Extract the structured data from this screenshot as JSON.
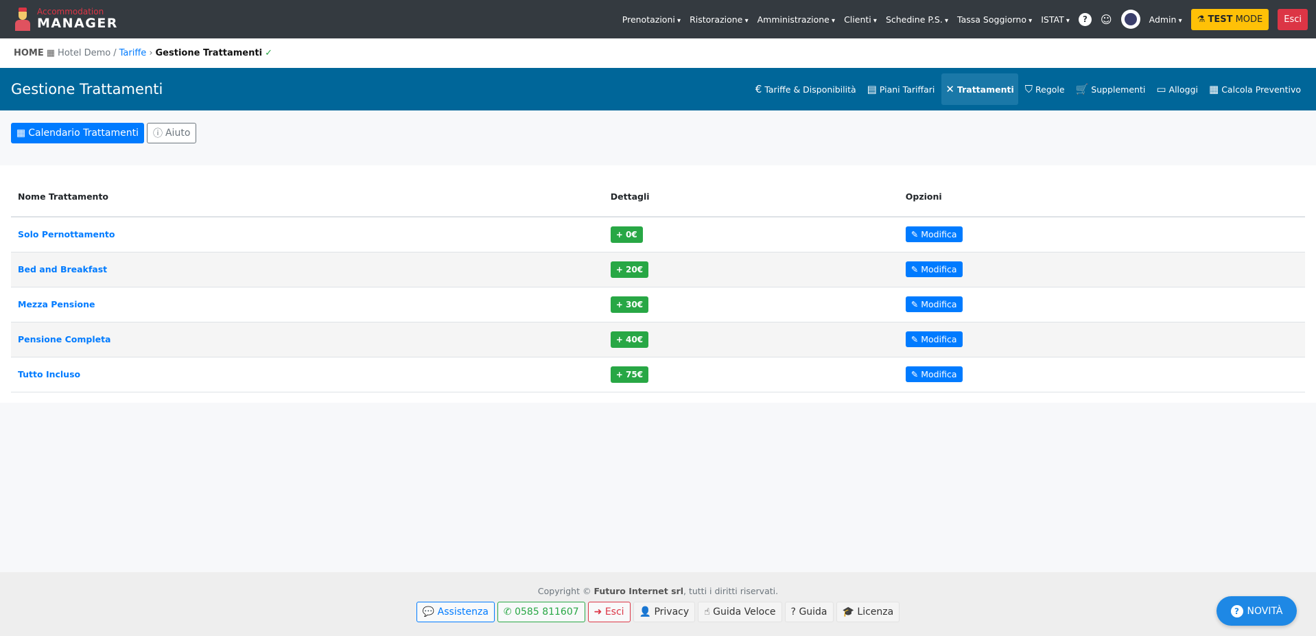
{
  "brand": {
    "line1": "Accommodation",
    "line2": "MANAGER"
  },
  "nav": {
    "items": [
      "Prenotazioni",
      "Ristorazione",
      "Amministrazione",
      "Clienti",
      "Schedine P.S.",
      "Tassa Soggiorno",
      "ISTAT"
    ],
    "help": "?",
    "user": "Admin",
    "test_bold": "TEST",
    "test_rest": " MODE",
    "logout": "Esci"
  },
  "breadcrumb": {
    "home": "HOME",
    "hotel": "Hotel Demo",
    "sep": "/",
    "parent": "Tariffe",
    "sep2": "›",
    "current": "Gestione Trattamenti",
    "check": "✓"
  },
  "header": {
    "title": "Gestione Trattamenti",
    "tabs": [
      {
        "label": "Tariffe & Disponibilità",
        "icon": "euro-icon",
        "glyph": "€"
      },
      {
        "label": "Piani Tariffari",
        "icon": "calendar-icon",
        "glyph": "▤"
      },
      {
        "label": "Trattamenti",
        "icon": "utensils-icon",
        "glyph": "✕"
      },
      {
        "label": "Regole",
        "icon": "shield-icon",
        "glyph": "⛉"
      },
      {
        "label": "Supplementi",
        "icon": "cart-icon",
        "glyph": "🛒"
      },
      {
        "label": "Alloggi",
        "icon": "bed-icon",
        "glyph": "▭"
      },
      {
        "label": "Calcola Preventivo",
        "icon": "calculator-icon",
        "glyph": "▦"
      }
    ],
    "active_tab": "Trattamenti"
  },
  "actions": {
    "calendar": "Calendario Trattamenti",
    "help": "Aiuto"
  },
  "table": {
    "headers": [
      "Nome Trattamento",
      "Dettagli",
      "Opzioni"
    ],
    "rows": [
      {
        "name": "Solo Pernottamento",
        "price": "+ 0€",
        "action": "Modifica"
      },
      {
        "name": "Bed and Breakfast",
        "price": "+ 20€",
        "action": "Modifica"
      },
      {
        "name": "Mezza Pensione",
        "price": "+ 30€",
        "action": "Modifica"
      },
      {
        "name": "Pensione Completa",
        "price": "+ 40€",
        "action": "Modifica"
      },
      {
        "name": "Tutto Incluso",
        "price": "+ 75€",
        "action": "Modifica"
      }
    ]
  },
  "footer": {
    "copy_pre": "Copyright © ",
    "company": "Futuro Internet srl",
    "copy_post": ", tutti i diritti riservati.",
    "buttons": [
      "Assistenza",
      "0585 811607",
      "Esci",
      "Privacy",
      "Guida Veloce",
      "Guida",
      "Licenza"
    ]
  },
  "novita": "NOVITÀ",
  "colors": {
    "navbar": "#343a40",
    "header": "#006699",
    "primary": "#007bff",
    "success": "#28a745",
    "danger": "#dc3545",
    "warning": "#ffc107"
  }
}
